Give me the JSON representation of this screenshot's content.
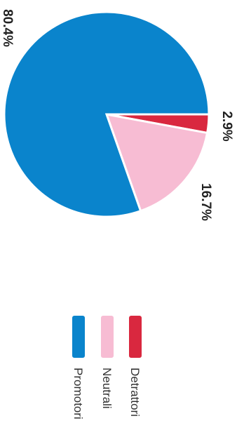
{
  "chart_data": {
    "type": "pie",
    "title": "",
    "series": [
      {
        "label": "Promotori",
        "value": 80.4,
        "display": "80.4%",
        "color": "#0a84cc"
      },
      {
        "label": "Neutrali",
        "value": 16.7,
        "display": "16.7%",
        "color": "#f7bcd3"
      },
      {
        "label": "Detrattori",
        "value": 2.9,
        "display": "2.9%",
        "color": "#d9283f"
      }
    ],
    "legend_placement": "below",
    "orientation": "rotated-90-clockwise"
  }
}
